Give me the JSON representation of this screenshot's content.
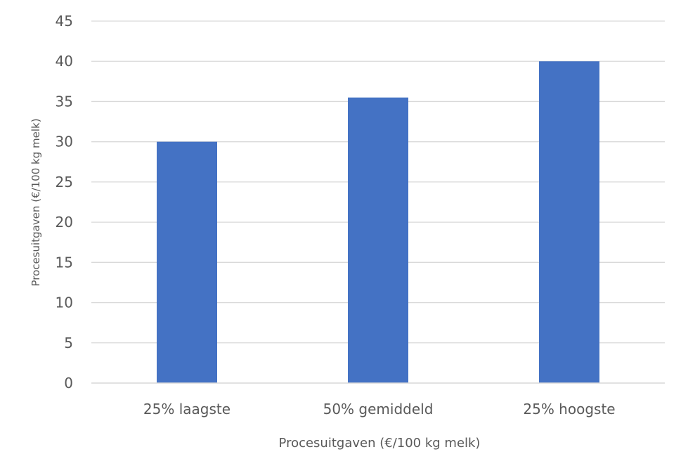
{
  "chart_data": {
    "type": "bar",
    "title": "",
    "categories": [
      "25% laagste",
      "50% gemiddeld",
      "25% hoogste"
    ],
    "series": [
      {
        "values": [
          30,
          35.5,
          40
        ],
        "color": "#4472C4"
      }
    ],
    "xlabel": "Procesuitgaven (€/100 kg melk)",
    "ylabel": "Procesuitgaven (€/100 kg melk)",
    "ylim": [
      0,
      45
    ],
    "yticks": [
      "0",
      "5",
      "10",
      "15",
      "20",
      "25",
      "30",
      "35",
      "40",
      "45"
    ],
    "grid": true,
    "legend": "none"
  }
}
